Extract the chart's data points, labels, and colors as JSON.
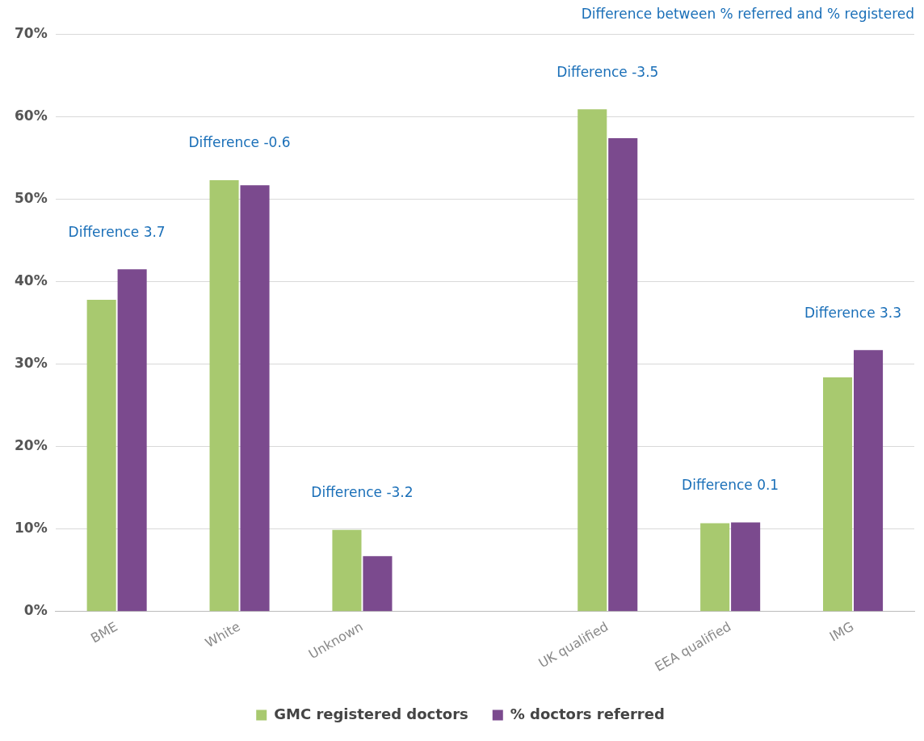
{
  "chart_data": {
    "type": "bar",
    "subtitle": "Difference between % referred and % registered",
    "categories": [
      "BME",
      "White",
      "Unknown",
      null,
      "UK qualified",
      "EEA qualified",
      "IMG"
    ],
    "series": [
      {
        "name": "GMC registered doctors",
        "color": "#a8c96f",
        "values": [
          37.8,
          52.3,
          9.9,
          null,
          60.9,
          10.7,
          28.4
        ]
      },
      {
        "name": "% doctors referred",
        "color": "#7b4a8e",
        "values": [
          41.5,
          51.7,
          6.7,
          null,
          57.4,
          10.8,
          31.7
        ]
      }
    ],
    "ylim": [
      0,
      70
    ],
    "yticks": [
      {
        "value": 0,
        "label": "0%"
      },
      {
        "value": 10,
        "label": "10%"
      },
      {
        "value": 20,
        "label": "20%"
      },
      {
        "value": 30,
        "label": "30%"
      },
      {
        "value": 40,
        "label": "40%"
      },
      {
        "value": 50,
        "label": "50%"
      },
      {
        "value": 60,
        "label": "60%"
      },
      {
        "value": 70,
        "label": "70%"
      }
    ],
    "grid": "y",
    "legend": "bottom",
    "annotations": [
      "Difference 3.7",
      "Difference -0.6",
      "Difference -3.2",
      "Difference -3.5",
      "Difference 0.1",
      "Difference 3.3"
    ]
  }
}
